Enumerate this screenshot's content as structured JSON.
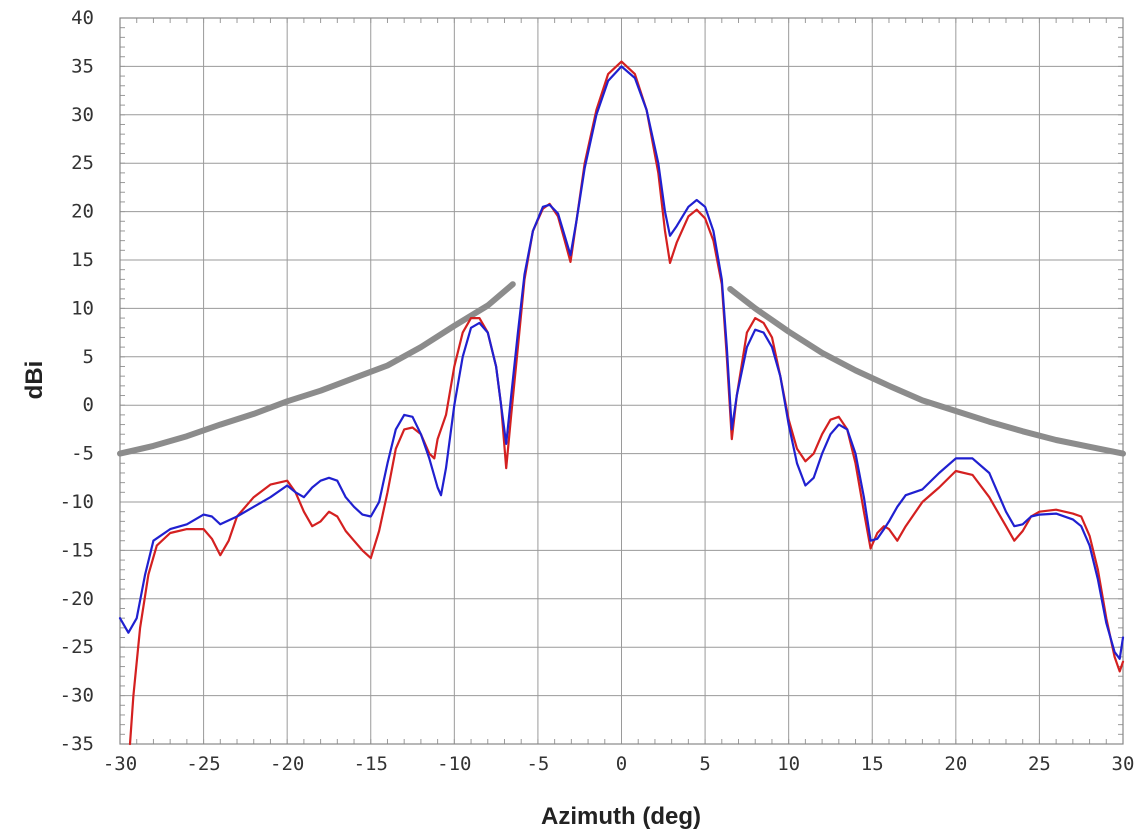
{
  "chart_data": {
    "type": "line",
    "xlabel": "Azimuth (deg)",
    "ylabel": "dBi",
    "xlim": [
      -30,
      30
    ],
    "ylim": [
      -35,
      40
    ],
    "x_ticks": [
      -30,
      -25,
      -20,
      -15,
      -10,
      -5,
      0,
      5,
      10,
      15,
      20,
      25,
      30
    ],
    "y_ticks": [
      -35,
      -30,
      -25,
      -20,
      -15,
      -10,
      -5,
      0,
      5,
      10,
      15,
      20,
      25,
      30,
      35,
      40
    ],
    "x_tick_labels": [
      "-30",
      "-25",
      "-20",
      "-15",
      "-10",
      "-5",
      "0",
      "5",
      "10",
      "15",
      "20",
      "25",
      "30"
    ],
    "y_tick_labels": [
      "-35",
      "-30",
      "-25",
      "-20",
      "-15",
      "-10",
      "-5",
      "0",
      "5",
      "10",
      "15",
      "20",
      "25",
      "30",
      "35",
      "40"
    ],
    "grid": true,
    "series": [
      {
        "color": "#d42020",
        "points": [
          [
            -29.4,
            -35
          ],
          [
            -29.2,
            -30
          ],
          [
            -28.8,
            -23
          ],
          [
            -28.3,
            -17.5
          ],
          [
            -27.8,
            -14.5
          ],
          [
            -27,
            -13.2
          ],
          [
            -26,
            -12.8
          ],
          [
            -25,
            -12.8
          ],
          [
            -24.5,
            -13.8
          ],
          [
            -24,
            -15.5
          ],
          [
            -23.5,
            -14
          ],
          [
            -23,
            -11.5
          ],
          [
            -22,
            -9.5
          ],
          [
            -21,
            -8.2
          ],
          [
            -20,
            -7.8
          ],
          [
            -19.5,
            -9
          ],
          [
            -19,
            -11
          ],
          [
            -18.5,
            -12.5
          ],
          [
            -18,
            -12
          ],
          [
            -17.5,
            -11
          ],
          [
            -17,
            -11.5
          ],
          [
            -16.5,
            -13
          ],
          [
            -16,
            -14
          ],
          [
            -15.5,
            -15
          ],
          [
            -15,
            -15.8
          ],
          [
            -14.5,
            -13
          ],
          [
            -14,
            -9
          ],
          [
            -13.5,
            -4.5
          ],
          [
            -13,
            -2.5
          ],
          [
            -12.5,
            -2.3
          ],
          [
            -12,
            -3
          ],
          [
            -11.5,
            -5
          ],
          [
            -11.2,
            -5.5
          ],
          [
            -11,
            -3.5
          ],
          [
            -10.5,
            -1
          ],
          [
            -10,
            4
          ],
          [
            -9.5,
            7.5
          ],
          [
            -9,
            9
          ],
          [
            -8.5,
            9
          ],
          [
            -8,
            7.5
          ],
          [
            -7.5,
            4
          ],
          [
            -7.2,
            0
          ],
          [
            -6.9,
            -6.5
          ],
          [
            -6.6,
            -1
          ],
          [
            -6.2,
            6
          ],
          [
            -5.8,
            13
          ],
          [
            -5.3,
            18
          ],
          [
            -4.7,
            20.3
          ],
          [
            -4.3,
            20.8
          ],
          [
            -3.8,
            19.5
          ],
          [
            -3.4,
            17
          ],
          [
            -3.05,
            14.8
          ],
          [
            -2.7,
            19
          ],
          [
            -2.2,
            25
          ],
          [
            -1.5,
            30.5
          ],
          [
            -0.8,
            34.2
          ],
          [
            0,
            35.5
          ],
          [
            0.8,
            34.2
          ],
          [
            1.5,
            30.5
          ],
          [
            2.2,
            24
          ],
          [
            2.6,
            18
          ],
          [
            2.9,
            14.7
          ],
          [
            3.3,
            16.8
          ],
          [
            4,
            19.5
          ],
          [
            4.5,
            20.2
          ],
          [
            5,
            19.3
          ],
          [
            5.5,
            17
          ],
          [
            6,
            12.5
          ],
          [
            6.3,
            5
          ],
          [
            6.6,
            -3.5
          ],
          [
            6.9,
            1
          ],
          [
            7.5,
            7.5
          ],
          [
            8,
            9
          ],
          [
            8.5,
            8.5
          ],
          [
            9,
            7
          ],
          [
            9.5,
            3
          ],
          [
            10,
            -1.5
          ],
          [
            10.5,
            -4.5
          ],
          [
            11,
            -5.8
          ],
          [
            11.5,
            -5
          ],
          [
            12,
            -3
          ],
          [
            12.5,
            -1.5
          ],
          [
            13,
            -1.2
          ],
          [
            13.5,
            -2.5
          ],
          [
            14,
            -6
          ],
          [
            14.5,
            -11
          ],
          [
            14.9,
            -14.8
          ],
          [
            15.3,
            -13.2
          ],
          [
            15.7,
            -12.5
          ],
          [
            16,
            -12.8
          ],
          [
            16.5,
            -14
          ],
          [
            17,
            -12.5
          ],
          [
            18,
            -10
          ],
          [
            19,
            -8.5
          ],
          [
            20,
            -6.8
          ],
          [
            21,
            -7.2
          ],
          [
            22,
            -9.5
          ],
          [
            22.5,
            -11
          ],
          [
            23,
            -12.5
          ],
          [
            23.5,
            -14
          ],
          [
            24,
            -13
          ],
          [
            24.5,
            -11.5
          ],
          [
            25,
            -11
          ],
          [
            26,
            -10.8
          ],
          [
            27,
            -11.2
          ],
          [
            27.5,
            -11.5
          ],
          [
            28,
            -13.5
          ],
          [
            28.5,
            -17
          ],
          [
            29,
            -22
          ],
          [
            29.5,
            -26
          ],
          [
            29.8,
            -27.5
          ],
          [
            30,
            -26.5
          ]
        ]
      },
      {
        "color": "#2020d0",
        "points": [
          [
            -30,
            -22
          ],
          [
            -29.5,
            -23.5
          ],
          [
            -29,
            -22
          ],
          [
            -28.5,
            -17.5
          ],
          [
            -28,
            -14
          ],
          [
            -27,
            -12.8
          ],
          [
            -26,
            -12.3
          ],
          [
            -25,
            -11.3
          ],
          [
            -24.5,
            -11.5
          ],
          [
            -24,
            -12.3
          ],
          [
            -23,
            -11.5
          ],
          [
            -22,
            -10.5
          ],
          [
            -21,
            -9.5
          ],
          [
            -20,
            -8.3
          ],
          [
            -19.5,
            -9
          ],
          [
            -19,
            -9.5
          ],
          [
            -18.5,
            -8.5
          ],
          [
            -18,
            -7.8
          ],
          [
            -17.5,
            -7.5
          ],
          [
            -17,
            -7.8
          ],
          [
            -16.5,
            -9.5
          ],
          [
            -16,
            -10.5
          ],
          [
            -15.5,
            -11.3
          ],
          [
            -15,
            -11.5
          ],
          [
            -14.5,
            -10
          ],
          [
            -14,
            -6
          ],
          [
            -13.5,
            -2.5
          ],
          [
            -13,
            -1
          ],
          [
            -12.5,
            -1.2
          ],
          [
            -12,
            -3
          ],
          [
            -11.5,
            -5.5
          ],
          [
            -11,
            -8.5
          ],
          [
            -10.8,
            -9.3
          ],
          [
            -10.5,
            -6.5
          ],
          [
            -10,
            0
          ],
          [
            -9.5,
            5
          ],
          [
            -9,
            8
          ],
          [
            -8.5,
            8.5
          ],
          [
            -8,
            7.5
          ],
          [
            -7.5,
            4
          ],
          [
            -7.2,
            0
          ],
          [
            -6.9,
            -4
          ],
          [
            -6.6,
            1
          ],
          [
            -6.2,
            7.5
          ],
          [
            -5.8,
            13.5
          ],
          [
            -5.3,
            18
          ],
          [
            -4.7,
            20.5
          ],
          [
            -4.3,
            20.7
          ],
          [
            -3.8,
            19.8
          ],
          [
            -3.4,
            17.5
          ],
          [
            -3.05,
            15.5
          ],
          [
            -2.7,
            19
          ],
          [
            -2.2,
            24.5
          ],
          [
            -1.5,
            30
          ],
          [
            -0.8,
            33.5
          ],
          [
            0,
            35
          ],
          [
            0.8,
            33.8
          ],
          [
            1.5,
            30.5
          ],
          [
            2.2,
            25
          ],
          [
            2.6,
            20
          ],
          [
            2.9,
            17.5
          ],
          [
            3.3,
            18.5
          ],
          [
            4,
            20.5
          ],
          [
            4.5,
            21.2
          ],
          [
            5,
            20.5
          ],
          [
            5.5,
            18
          ],
          [
            6,
            13
          ],
          [
            6.3,
            6
          ],
          [
            6.6,
            -2.5
          ],
          [
            6.9,
            1
          ],
          [
            7.5,
            6
          ],
          [
            8,
            7.8
          ],
          [
            8.5,
            7.5
          ],
          [
            9,
            6
          ],
          [
            9.5,
            3
          ],
          [
            10,
            -2
          ],
          [
            10.5,
            -6
          ],
          [
            11,
            -8.3
          ],
          [
            11.5,
            -7.5
          ],
          [
            12,
            -5
          ],
          [
            12.5,
            -3
          ],
          [
            13,
            -2
          ],
          [
            13.5,
            -2.5
          ],
          [
            14,
            -5
          ],
          [
            14.5,
            -9.5
          ],
          [
            14.9,
            -14
          ],
          [
            15.3,
            -13.8
          ],
          [
            15.7,
            -12.8
          ],
          [
            16,
            -12
          ],
          [
            16.5,
            -10.5
          ],
          [
            17,
            -9.3
          ],
          [
            18,
            -8.7
          ],
          [
            19,
            -7
          ],
          [
            20,
            -5.5
          ],
          [
            21,
            -5.5
          ],
          [
            22,
            -7
          ],
          [
            22.5,
            -9
          ],
          [
            23,
            -11
          ],
          [
            23.5,
            -12.5
          ],
          [
            24,
            -12.3
          ],
          [
            24.5,
            -11.5
          ],
          [
            25,
            -11.3
          ],
          [
            26,
            -11.2
          ],
          [
            27,
            -11.8
          ],
          [
            27.5,
            -12.5
          ],
          [
            28,
            -14.5
          ],
          [
            28.5,
            -18
          ],
          [
            29,
            -22.5
          ],
          [
            29.5,
            -25.5
          ],
          [
            29.8,
            -26.2
          ],
          [
            30,
            -24
          ]
        ]
      },
      {
        "color": "#8c8c8c",
        "points": [
          [
            -30,
            -5
          ],
          [
            -28,
            -4.2
          ],
          [
            -26,
            -3.2
          ],
          [
            -24,
            -2
          ],
          [
            -22,
            -0.9
          ],
          [
            -20,
            0.4
          ],
          [
            -18,
            1.5
          ],
          [
            -16,
            2.8
          ],
          [
            -14,
            4.1
          ],
          [
            -12,
            6
          ],
          [
            -10,
            8.2
          ],
          [
            -8,
            10.3
          ],
          [
            -6.5,
            12.5
          ],
          "gap",
          [
            6.5,
            12
          ],
          [
            8,
            10
          ],
          [
            10,
            7.6
          ],
          [
            12,
            5.4
          ],
          [
            14,
            3.6
          ],
          [
            16,
            2
          ],
          [
            18,
            0.5
          ],
          [
            20,
            -0.6
          ],
          [
            22,
            -1.7
          ],
          [
            24,
            -2.7
          ],
          [
            26,
            -3.6
          ],
          [
            28,
            -4.3
          ],
          [
            30,
            -5
          ]
        ]
      }
    ]
  }
}
